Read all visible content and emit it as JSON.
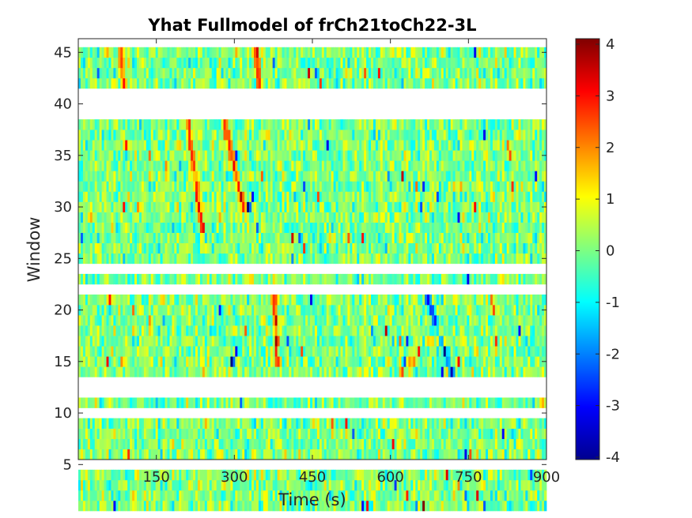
{
  "chart_data": {
    "type": "heatmap",
    "title": "Yhat Fullmodel of frCh21toCh22-3L",
    "xlabel": "Time (s)",
    "ylabel": "Window",
    "xlim": [
      0,
      900
    ],
    "ylim": [
      1,
      46
    ],
    "x_ticks": [
      150,
      300,
      450,
      600,
      750,
      900
    ],
    "x_tick_labels": [
      "150",
      "300",
      "450",
      "600",
      "750",
      "900"
    ],
    "y_ticks": [
      5,
      10,
      15,
      20,
      25,
      30,
      35,
      40,
      45
    ],
    "y_tick_labels": [
      "5",
      "10",
      "15",
      "20",
      "25",
      "30",
      "35",
      "40",
      "45"
    ],
    "windows_with_data": [
      1,
      2,
      3,
      4,
      6,
      7,
      8,
      9,
      11,
      14,
      15,
      16,
      17,
      18,
      19,
      20,
      21,
      23,
      25,
      26,
      27,
      28,
      29,
      30,
      31,
      32,
      33,
      34,
      35,
      36,
      37,
      38,
      42,
      43,
      44,
      45
    ],
    "missing_windows": [
      5,
      10,
      12,
      13,
      22,
      24,
      39,
      40,
      41
    ],
    "colormap": "jet",
    "colorbar": {
      "limits": [
        -4,
        4
      ],
      "ticks": [
        -4,
        -3,
        -2,
        -1,
        0,
        1,
        2,
        3,
        4
      ],
      "tick_labels": [
        "-4",
        "-3",
        "-2",
        "-1",
        "0",
        "1",
        "2",
        "3",
        "4"
      ]
    },
    "value_note": "values mostly between -1 and 1; extremes near -4 and 4"
  }
}
